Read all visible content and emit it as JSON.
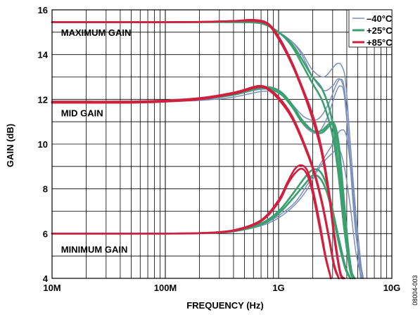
{
  "chart_data": {
    "type": "line",
    "title": "",
    "xlabel": "FREQUENCY (Hz)",
    "ylabel": "GAIN (dB)",
    "xscale": "log",
    "xlim": [
      10000000,
      10000000000
    ],
    "ylim": [
      4,
      16
    ],
    "grid": true,
    "legend_position": "top-right",
    "xticks": [
      {
        "value": 10000000,
        "label": "10M"
      },
      {
        "value": 100000000,
        "label": "100M"
      },
      {
        "value": 1000000000,
        "label": "1G"
      },
      {
        "value": 10000000000,
        "label": "10G"
      }
    ],
    "yticks": [
      {
        "value": 4,
        "label": "4"
      },
      {
        "value": 6,
        "label": "6"
      },
      {
        "value": 8,
        "label": "8"
      },
      {
        "value": 10,
        "label": "10"
      },
      {
        "value": 12,
        "label": "12"
      },
      {
        "value": 14,
        "label": "14"
      },
      {
        "value": 16,
        "label": "16"
      }
    ],
    "annotations": [
      {
        "text": "MAXIMUM GAIN",
        "x": 12000000,
        "y": 15.0
      },
      {
        "text": "MID GAIN",
        "x": 12000000,
        "y": 11.4
      },
      {
        "text": "MINIMUM GAIN",
        "x": 12000000,
        "y": 5.3
      }
    ],
    "series": [
      {
        "name": "–40°C",
        "color": "#7b8fbd",
        "curves": [
          {
            "x": [
              10000000,
              50000000,
              100000000,
              200000000,
              400000000,
              700000000,
              1000000000,
              1300000000,
              1600000000,
              2000000000,
              2500000000,
              3000000000,
              3300000000,
              3600000000,
              3900000000,
              4300000000,
              4800000000,
              5500000000
            ],
            "y": [
              15.45,
              15.45,
              15.45,
              15.45,
              15.45,
              15.4,
              15.0,
              14.6,
              14.0,
              13.0,
              12.4,
              12.6,
              12.9,
              12.8,
              12.0,
              9.0,
              6.0,
              4.0
            ]
          },
          {
            "x": [
              10000000,
              50000000,
              100000000,
              200000000,
              400000000,
              700000000,
              1000000000,
              1300000000,
              1600000000,
              2000000000,
              2500000000,
              3000000000,
              3300000000,
              3600000000,
              3900000000,
              4300000000,
              4800000000,
              5500000000
            ],
            "y": [
              15.45,
              15.45,
              15.45,
              15.45,
              15.45,
              15.4,
              15.0,
              14.6,
              14.1,
              13.3,
              13.0,
              13.4,
              13.6,
              13.5,
              12.8,
              10.0,
              7.0,
              4.0
            ]
          },
          {
            "x": [
              10000000,
              50000000,
              100000000,
              200000000,
              400000000,
              700000000,
              1000000000,
              1300000000,
              1700000000,
              2200000000,
              2700000000,
              3200000000,
              3500000000,
              3800000000,
              4200000000,
              4700000000,
              5300000000
            ],
            "y": [
              11.9,
              11.9,
              11.95,
              12.0,
              12.2,
              12.45,
              12.35,
              11.7,
              10.8,
              10.5,
              11.2,
              12.3,
              12.6,
              12.2,
              9.8,
              6.8,
              4.0
            ]
          },
          {
            "x": [
              10000000,
              50000000,
              100000000,
              200000000,
              400000000,
              700000000,
              1000000000,
              1300000000,
              1700000000,
              2200000000,
              2700000000,
              3200000000,
              3500000000,
              3800000000,
              4200000000,
              4700000000,
              5300000000
            ],
            "y": [
              11.85,
              11.85,
              11.9,
              11.95,
              12.1,
              12.35,
              12.3,
              11.8,
              11.2,
              11.1,
              11.7,
              12.6,
              12.9,
              12.5,
              10.0,
              7.0,
              4.0
            ]
          },
          {
            "x": [
              10000000,
              50000000,
              100000000,
              200000000,
              400000000,
              700000000,
              1000000000,
              1400000000,
              1800000000,
              2200000000,
              2600000000,
              3000000000,
              3500000000,
              4000000000,
              4500000000,
              5000000000,
              5600000000
            ],
            "y": [
              6.0,
              6.0,
              6.0,
              6.02,
              6.1,
              6.4,
              6.8,
              7.4,
              8.2,
              8.9,
              9.5,
              10.0,
              10.6,
              10.3,
              8.0,
              5.5,
              4.0
            ]
          },
          {
            "x": [
              10000000,
              50000000,
              100000000,
              200000000,
              400000000,
              700000000,
              1000000000,
              1400000000,
              1800000000,
              2200000000,
              2600000000,
              3000000000,
              3400000000,
              3800000000,
              4300000000,
              4800000000,
              5400000000
            ],
            "y": [
              6.0,
              6.0,
              6.0,
              6.02,
              6.1,
              6.35,
              6.7,
              7.3,
              8.0,
              8.8,
              9.3,
              9.6,
              9.8,
              9.0,
              7.2,
              5.2,
              4.0
            ]
          }
        ]
      },
      {
        "name": "+25°C",
        "color": "#3aa070",
        "curves": [
          {
            "x": [
              10000000,
              50000000,
              100000000,
              200000000,
              400000000,
              700000000,
              1000000000,
              1300000000,
              1600000000,
              2000000000,
              2400000000,
              2800000000,
              3100000000,
              3400000000,
              3800000000,
              4300000000,
              4700000000
            ],
            "y": [
              15.45,
              15.45,
              15.45,
              15.45,
              15.45,
              15.4,
              15.0,
              14.5,
              13.8,
              13.0,
              12.5,
              11.6,
              10.5,
              8.8,
              6.5,
              4.5,
              4.0
            ]
          },
          {
            "x": [
              10000000,
              50000000,
              100000000,
              200000000,
              400000000,
              700000000,
              1000000000,
              1300000000,
              1600000000,
              2000000000,
              2400000000,
              2800000000,
              3100000000,
              3400000000,
              3800000000,
              4300000000,
              4700000000
            ],
            "y": [
              15.45,
              15.45,
              15.45,
              15.45,
              15.45,
              15.4,
              15.0,
              14.4,
              13.6,
              12.7,
              12.0,
              11.0,
              10.0,
              8.5,
              6.2,
              4.3,
              4.0
            ]
          },
          {
            "x": [
              10000000,
              50000000,
              100000000,
              200000000,
              400000000,
              700000000,
              1000000000,
              1300000000,
              1600000000,
              2000000000,
              2400000000,
              2800000000,
              3100000000,
              3400000000,
              3700000000,
              4100000000,
              4500000000
            ],
            "y": [
              11.9,
              11.9,
              11.95,
              12.05,
              12.25,
              12.55,
              12.4,
              11.8,
              11.1,
              10.6,
              10.5,
              10.8,
              10.9,
              10.0,
              8.0,
              5.5,
              4.0
            ]
          },
          {
            "x": [
              10000000,
              50000000,
              100000000,
              200000000,
              400000000,
              700000000,
              1000000000,
              1300000000,
              1600000000,
              2000000000,
              2400000000,
              2800000000,
              3100000000,
              3400000000,
              3700000000,
              4100000000,
              4500000000
            ],
            "y": [
              11.85,
              11.85,
              11.9,
              12.0,
              12.2,
              12.5,
              12.3,
              11.7,
              11.0,
              10.6,
              10.6,
              10.9,
              10.8,
              9.6,
              7.5,
              5.2,
              4.0
            ]
          },
          {
            "x": [
              10000000,
              50000000,
              100000000,
              200000000,
              400000000,
              700000000,
              1000000000,
              1300000000,
              1700000000,
              2000000000,
              2300000000,
              2600000000,
              2900000000,
              3200000000,
              3500000000,
              3900000000,
              4300000000
            ],
            "y": [
              6.0,
              6.0,
              6.0,
              6.02,
              6.12,
              6.45,
              7.0,
              7.7,
              8.5,
              8.85,
              8.8,
              8.3,
              7.4,
              6.4,
              5.5,
              4.5,
              4.0
            ]
          },
          {
            "x": [
              10000000,
              50000000,
              100000000,
              200000000,
              400000000,
              700000000,
              1000000000,
              1300000000,
              1700000000,
              2000000000,
              2300000000,
              2600000000,
              2900000000,
              3200000000,
              3500000000,
              3900000000,
              4300000000
            ],
            "y": [
              6.0,
              6.0,
              6.0,
              6.02,
              6.1,
              6.4,
              6.9,
              7.5,
              8.2,
              8.6,
              8.5,
              8.0,
              7.2,
              6.2,
              5.3,
              4.4,
              4.0
            ]
          }
        ]
      },
      {
        "name": "+85°C",
        "color": "#d1203f",
        "curves": [
          {
            "x": [
              10000000,
              50000000,
              100000000,
              200000000,
              400000000,
              600000000,
              800000000,
              1000000000,
              1300000000,
              1600000000,
              2000000000,
              2400000000,
              2800000000,
              3100000000,
              3500000000,
              3800000000
            ],
            "y": [
              15.45,
              15.45,
              15.45,
              15.46,
              15.5,
              15.55,
              15.4,
              14.8,
              13.7,
              12.6,
              11.3,
              9.8,
              7.8,
              6.0,
              4.3,
              4.0
            ]
          },
          {
            "x": [
              10000000,
              50000000,
              100000000,
              200000000,
              400000000,
              600000000,
              800000000,
              1000000000,
              1300000000,
              1600000000,
              2000000000,
              2400000000,
              2800000000,
              3100000000,
              3500000000,
              3800000000
            ],
            "y": [
              15.45,
              15.45,
              15.45,
              15.46,
              15.5,
              15.5,
              15.35,
              14.7,
              13.6,
              12.5,
              11.1,
              9.6,
              7.6,
              5.8,
              4.2,
              4.0
            ]
          },
          {
            "x": [
              10000000,
              50000000,
              100000000,
              200000000,
              400000000,
              600000000,
              700000000,
              800000000,
              1000000000,
              1300000000,
              1600000000,
              2000000000,
              2400000000,
              2800000000,
              3100000000,
              3400000000
            ],
            "y": [
              11.9,
              11.9,
              11.95,
              12.05,
              12.3,
              12.55,
              12.6,
              12.5,
              12.1,
              11.3,
              10.3,
              9.0,
              7.5,
              5.8,
              4.6,
              4.0
            ]
          },
          {
            "x": [
              10000000,
              50000000,
              100000000,
              200000000,
              400000000,
              600000000,
              700000000,
              800000000,
              1000000000,
              1300000000,
              1600000000,
              2000000000,
              2400000000,
              2800000000,
              3100000000,
              3400000000
            ],
            "y": [
              11.85,
              11.85,
              11.9,
              12.0,
              12.25,
              12.5,
              12.55,
              12.45,
              12.0,
              11.2,
              10.2,
              8.9,
              7.4,
              5.7,
              4.5,
              4.0
            ]
          },
          {
            "x": [
              10000000,
              50000000,
              100000000,
              200000000,
              400000000,
              700000000,
              1000000000,
              1200000000,
              1400000000,
              1600000000,
              1800000000,
              2000000000,
              2300000000,
              2600000000,
              2900000000
            ],
            "y": [
              6.0,
              6.0,
              6.0,
              6.02,
              6.15,
              6.6,
              7.5,
              8.3,
              8.9,
              9.05,
              8.8,
              8.0,
              6.5,
              5.0,
              4.0
            ]
          },
          {
            "x": [
              10000000,
              50000000,
              100000000,
              200000000,
              400000000,
              700000000,
              1000000000,
              1200000000,
              1400000000,
              1600000000,
              1800000000,
              2000000000,
              2300000000,
              2600000000,
              2900000000
            ],
            "y": [
              6.0,
              6.0,
              6.0,
              6.02,
              6.12,
              6.55,
              7.4,
              8.2,
              8.7,
              8.9,
              8.6,
              7.8,
              6.3,
              4.9,
              4.0
            ]
          }
        ]
      }
    ]
  },
  "figure_id": "08004-003"
}
